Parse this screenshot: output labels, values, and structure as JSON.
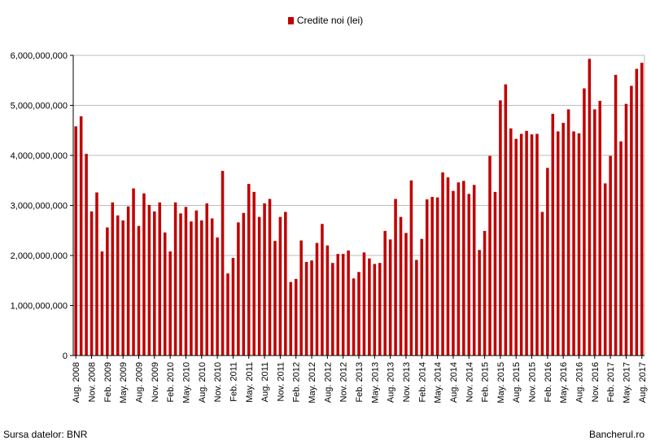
{
  "legend": {
    "label": "Credite noi (lei)",
    "color": "#c00000"
  },
  "footer": {
    "source": "Sursa datelor: BNR",
    "brand": "Bancherul.ro"
  },
  "chart_data": {
    "type": "bar",
    "title": "",
    "xlabel": "",
    "ylabel": "",
    "ylim": [
      0,
      6000000000
    ],
    "yticks": [
      0,
      1000000000,
      2000000000,
      3000000000,
      4000000000,
      5000000000,
      6000000000
    ],
    "ytick_labels": [
      "0",
      "1,000,000,000",
      "2,000,000,000",
      "3,000,000,000",
      "4,000,000,000",
      "5,000,000,000",
      "6,000,000,000"
    ],
    "grid": true,
    "legend_position": "top-center",
    "bar_color": "#c00000",
    "x_tick_labels": [
      "Aug. 2008",
      "Nov. 2008",
      "Feb. 2009",
      "May. 2009",
      "Aug. 2009",
      "Nov. 2009",
      "Feb. 2010",
      "May. 2010",
      "Aug. 2010",
      "Nov. 2010",
      "Feb. 2011",
      "May. 2011",
      "Aug. 2011",
      "Nov. 2011",
      "Feb. 2012",
      "May. 2012",
      "Aug. 2012",
      "Nov. 2012",
      "Feb. 2013",
      "May. 2013",
      "Aug. 2013",
      "Nov. 2013",
      "Feb. 2014",
      "May. 2014",
      "Aug. 2014",
      "Nov. 2014",
      "Feb. 2015",
      "May. 2015",
      "Aug. 2015",
      "Nov. 2015",
      "Feb. 2016",
      "May. 2016",
      "Aug. 2016",
      "Nov. 2016",
      "Feb. 2017",
      "May. 2017",
      "Aug. 2017"
    ],
    "x_tick_every": 3,
    "series": [
      {
        "name": "Credite noi (lei)",
        "values": [
          4580000000,
          4780000000,
          4030000000,
          2880000000,
          3260000000,
          2080000000,
          2560000000,
          3060000000,
          2800000000,
          2700000000,
          2980000000,
          3340000000,
          2590000000,
          3240000000,
          3010000000,
          2880000000,
          3060000000,
          2460000000,
          2080000000,
          3060000000,
          2840000000,
          2970000000,
          2680000000,
          2900000000,
          2700000000,
          3040000000,
          2740000000,
          2360000000,
          3690000000,
          1640000000,
          1950000000,
          2660000000,
          2850000000,
          3430000000,
          3270000000,
          2770000000,
          3040000000,
          3130000000,
          2290000000,
          2770000000,
          2870000000,
          1470000000,
          1530000000,
          2300000000,
          1870000000,
          1900000000,
          2250000000,
          2630000000,
          2200000000,
          1850000000,
          2030000000,
          2030000000,
          2100000000,
          1540000000,
          1670000000,
          2060000000,
          1940000000,
          1830000000,
          1850000000,
          2490000000,
          2320000000,
          3130000000,
          2770000000,
          2450000000,
          3500000000,
          1910000000,
          2330000000,
          3120000000,
          3170000000,
          3160000000,
          3660000000,
          3560000000,
          3290000000,
          3460000000,
          3490000000,
          3230000000,
          3410000000,
          2110000000,
          2490000000,
          3990000000,
          3270000000,
          5100000000,
          5420000000,
          4540000000,
          4330000000,
          4430000000,
          4490000000,
          4420000000,
          4430000000,
          2870000000,
          3750000000,
          4830000000,
          4480000000,
          4650000000,
          4920000000,
          4480000000,
          4440000000,
          5340000000,
          5930000000,
          4920000000,
          5090000000,
          3440000000,
          3990000000,
          5610000000,
          4280000000,
          5030000000,
          5390000000,
          5730000000,
          5850000000
        ]
      }
    ]
  }
}
